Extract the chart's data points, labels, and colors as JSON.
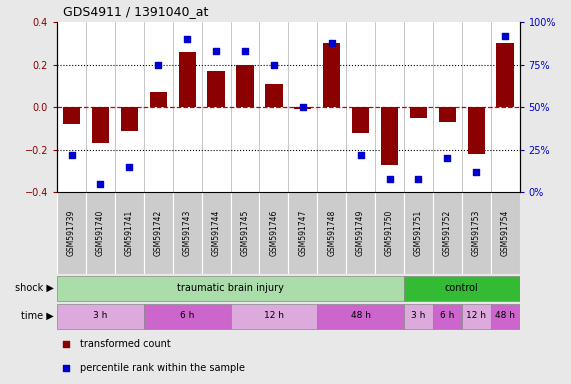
{
  "title": "GDS4911 / 1391040_at",
  "samples": [
    "GSM591739",
    "GSM591740",
    "GSM591741",
    "GSM591742",
    "GSM591743",
    "GSM591744",
    "GSM591745",
    "GSM591746",
    "GSM591747",
    "GSM591748",
    "GSM591749",
    "GSM591750",
    "GSM591751",
    "GSM591752",
    "GSM591753",
    "GSM591754"
  ],
  "transformed_count": [
    -0.08,
    -0.17,
    -0.11,
    0.07,
    0.26,
    0.17,
    0.2,
    0.11,
    -0.01,
    0.3,
    -0.12,
    -0.27,
    -0.05,
    -0.07,
    -0.22,
    0.3
  ],
  "percentile_rank": [
    22,
    5,
    15,
    75,
    90,
    83,
    83,
    75,
    50,
    88,
    22,
    8,
    8,
    20,
    12,
    92
  ],
  "bar_color": "#8B0000",
  "dot_color": "#0000CD",
  "ylim_left": [
    -0.4,
    0.4
  ],
  "ylim_right": [
    0,
    100
  ],
  "dotted_lines": [
    0.2,
    0.0,
    -0.2
  ],
  "background_color": "#e8e8e8",
  "plot_bg_color": "#ffffff",
  "sample_box_color": "#cccccc",
  "zero_line_color": "#CC0000",
  "tbi_color": "#aaddaa",
  "control_color": "#33bb33",
  "time_colors": [
    "#ddaadd",
    "#cc66cc"
  ],
  "shock_label": "shock",
  "time_label": "time",
  "tbi_label": "traumatic brain injury",
  "control_label": "control",
  "time_blocks_tbi": [
    {
      "label": "3 h",
      "s": 0,
      "e": 2
    },
    {
      "label": "6 h",
      "s": 3,
      "e": 5
    },
    {
      "label": "12 h",
      "s": 6,
      "e": 8
    },
    {
      "label": "48 h",
      "s": 9,
      "e": 11
    }
  ],
  "time_blocks_ctrl": [
    {
      "label": "3 h",
      "s": 12,
      "e": 12
    },
    {
      "label": "6 h",
      "s": 13,
      "e": 13
    },
    {
      "label": "12 h",
      "s": 14,
      "e": 14
    },
    {
      "label": "48 h",
      "s": 15,
      "e": 15
    }
  ],
  "legend_items": [
    {
      "label": "transformed count",
      "color": "#8B0000"
    },
    {
      "label": "percentile rank within the sample",
      "color": "#0000CD"
    }
  ]
}
